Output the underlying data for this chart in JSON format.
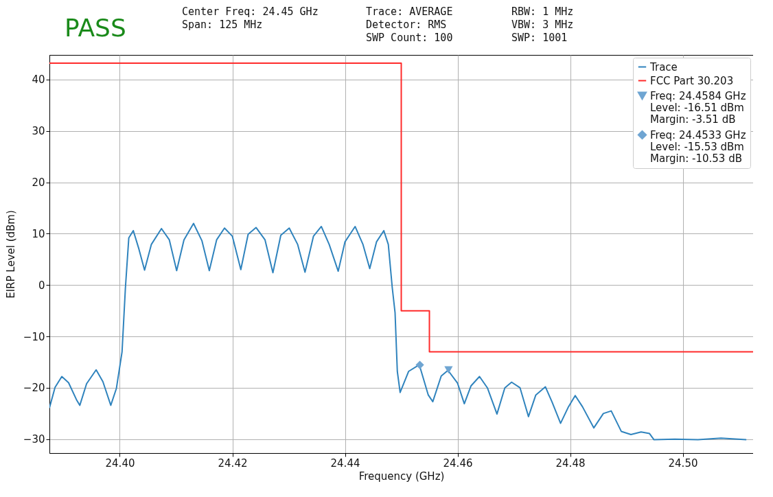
{
  "chart_data": {
    "type": "line",
    "title": "PASS",
    "annotations": [
      "Center Freq: 24.45 GHz\nSpan: 125 MHz",
      "Trace: AVERAGE\nDetector: RMS\nSWP Count: 100",
      "RBW: 1 MHz\nVBW: 3 MHz\nSWP: 1001"
    ],
    "xlabel": "Frequency (GHz)",
    "ylabel": "EIRP Level (dBm)",
    "xlim": [
      24.3875,
      24.5125
    ],
    "ylim": [
      -32.7,
      44.8
    ],
    "xticks": [
      {
        "value": 24.4,
        "label": "24.40"
      },
      {
        "value": 24.42,
        "label": "24.42"
      },
      {
        "value": 24.44,
        "label": "24.44"
      },
      {
        "value": 24.46,
        "label": "24.46"
      },
      {
        "value": 24.48,
        "label": "24.48"
      },
      {
        "value": 24.5,
        "label": "24.50"
      }
    ],
    "yticks": [
      -30,
      -20,
      -10,
      0,
      10,
      20,
      30,
      40
    ],
    "grid": true,
    "legend": "top right",
    "series": [
      {
        "name": "Trace",
        "color": "#2f83bd",
        "x": [
          24.3875,
          24.3885,
          24.3897,
          24.3909,
          24.3923,
          24.3929,
          24.3941,
          24.3958,
          24.397,
          24.3984,
          24.3994,
          24.4004,
          24.401,
          24.4016,
          24.4024,
          24.4034,
          24.4044,
          24.4056,
          24.4074,
          24.4088,
          24.4101,
          24.4114,
          24.4131,
          24.4146,
          24.4159,
          24.4172,
          24.4186,
          24.42,
          24.4215,
          24.4228,
          24.4242,
          24.4258,
          24.4272,
          24.4286,
          24.4301,
          24.4316,
          24.4329,
          24.4344,
          24.4358,
          24.4372,
          24.4388,
          24.44,
          24.4418,
          24.4432,
          24.4444,
          24.4456,
          24.4469,
          24.4477,
          24.4484,
          24.4489,
          24.4493,
          24.4498,
          24.4513,
          24.4532,
          24.4548,
          24.4556,
          24.4571,
          24.4583,
          24.46,
          24.4612,
          24.4624,
          24.4639,
          24.4653,
          24.467,
          24.4684,
          24.4696,
          24.4711,
          24.4726,
          24.4739,
          24.4756,
          24.4768,
          24.4783,
          24.4797,
          24.4809,
          24.4822,
          24.4842,
          24.4859,
          24.4873,
          24.4891,
          24.4908,
          24.4926,
          24.4941,
          24.4949,
          24.4986,
          24.5027,
          24.5068,
          24.5113
        ],
        "values": [
          -23.9,
          -19.9,
          -17.8,
          -19.0,
          -22.3,
          -23.4,
          -19.2,
          -16.5,
          -18.8,
          -23.4,
          -20.1,
          -13.0,
          -0.5,
          9.2,
          10.6,
          7.0,
          2.9,
          7.9,
          11.0,
          8.8,
          2.8,
          8.8,
          12.0,
          8.6,
          2.8,
          8.8,
          11.1,
          9.5,
          3.0,
          9.9,
          11.2,
          8.8,
          2.4,
          9.7,
          11.1,
          7.9,
          2.5,
          9.5,
          11.4,
          7.9,
          2.7,
          8.4,
          11.4,
          7.9,
          3.2,
          8.4,
          10.6,
          7.9,
          -0.5,
          -5.4,
          -16.8,
          -20.9,
          -16.8,
          -15.5,
          -21.4,
          -22.7,
          -17.7,
          -16.6,
          -19.1,
          -23.1,
          -19.6,
          -17.8,
          -20.0,
          -25.1,
          -20.0,
          -18.9,
          -20.0,
          -25.6,
          -21.4,
          -19.8,
          -22.8,
          -26.9,
          -23.7,
          -21.5,
          -23.7,
          -27.8,
          -25.0,
          -24.5,
          -28.5,
          -29.1,
          -28.6,
          -28.9,
          -30.1,
          -30.0,
          -30.1,
          -29.8,
          -30.1
        ]
      },
      {
        "name": "FCC Part 30.203",
        "color": "#ff2a2a",
        "x": [
          24.3875,
          24.45,
          24.45,
          24.455,
          24.455,
          24.5125
        ],
        "values": [
          43.2,
          43.2,
          -5,
          -5,
          -13,
          -13
        ]
      },
      {
        "name": "Freq: 24.4584 GHz\nLevel: -16.51 dBm\nMargin: -3.51 dB",
        "type": "scatter",
        "marker": "triangle",
        "color": "#6fa5d2",
        "x": [
          24.4584
        ],
        "values": [
          -16.51
        ]
      },
      {
        "name": "Freq: 24.4533 GHz\nLevel: -15.53 dBm\nMargin: -10.53 dB",
        "type": "scatter",
        "marker": "diamond",
        "color": "#6fa5d2",
        "x": [
          24.4533
        ],
        "values": [
          -15.53
        ]
      }
    ]
  }
}
